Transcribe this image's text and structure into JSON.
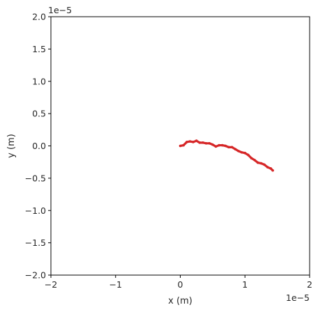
{
  "chart_data": {
    "type": "line",
    "title": "",
    "xlabel": "x (m)",
    "ylabel": "y (m)",
    "xlim": [
      -2e-05,
      2e-05
    ],
    "ylim": [
      -2e-05,
      2e-05
    ],
    "x_ticks": [
      -2e-05,
      -1e-05,
      0,
      1e-05,
      2e-05
    ],
    "x_tick_labels": [
      "−2",
      "−1",
      "0",
      "1",
      "2"
    ],
    "y_ticks": [
      2e-05,
      1.5e-05,
      1e-05,
      5e-06,
      0,
      -5e-06,
      -1e-05,
      -1.5e-05,
      -2e-05
    ],
    "y_tick_labels": [
      "2.0",
      "1.5",
      "1.0",
      "0.5",
      "0.0",
      "−0.5",
      "−1.0",
      "−1.5",
      "−2.0"
    ],
    "x_offset_label": "1e−5",
    "y_offset_label": "1e−5",
    "grid": false,
    "legend": false,
    "series": [
      {
        "color": "#d62728",
        "x": [
          0,
          5e-07,
          1e-06,
          1.5e-06,
          2e-06,
          2.5e-06,
          3e-06,
          3.5e-06,
          4e-06,
          4.5e-06,
          5e-06,
          5.5e-06,
          6e-06,
          6.5e-06,
          7e-06,
          7.5e-06,
          8e-06,
          8.5e-06,
          9e-06,
          9.5e-06,
          1e-05,
          1.05e-05,
          1.1e-05,
          1.15e-05,
          1.2e-05,
          1.25e-05,
          1.3e-05,
          1.35e-05,
          1.4e-05,
          1.43e-05
        ],
        "y": [
          0,
          1e-07,
          6e-07,
          7e-07,
          6e-07,
          8e-07,
          5e-07,
          5e-07,
          4e-07,
          4e-07,
          2e-07,
          -1e-07,
          1e-07,
          1e-07,
          0,
          -2e-07,
          -2e-07,
          -5e-07,
          -8e-07,
          -1e-06,
          -1.1e-06,
          -1.4e-06,
          -1.9e-06,
          -2.2e-06,
          -2.6e-06,
          -2.7e-06,
          -2.9e-06,
          -3.3e-06,
          -3.5e-06,
          -3.8e-06
        ]
      }
    ]
  }
}
